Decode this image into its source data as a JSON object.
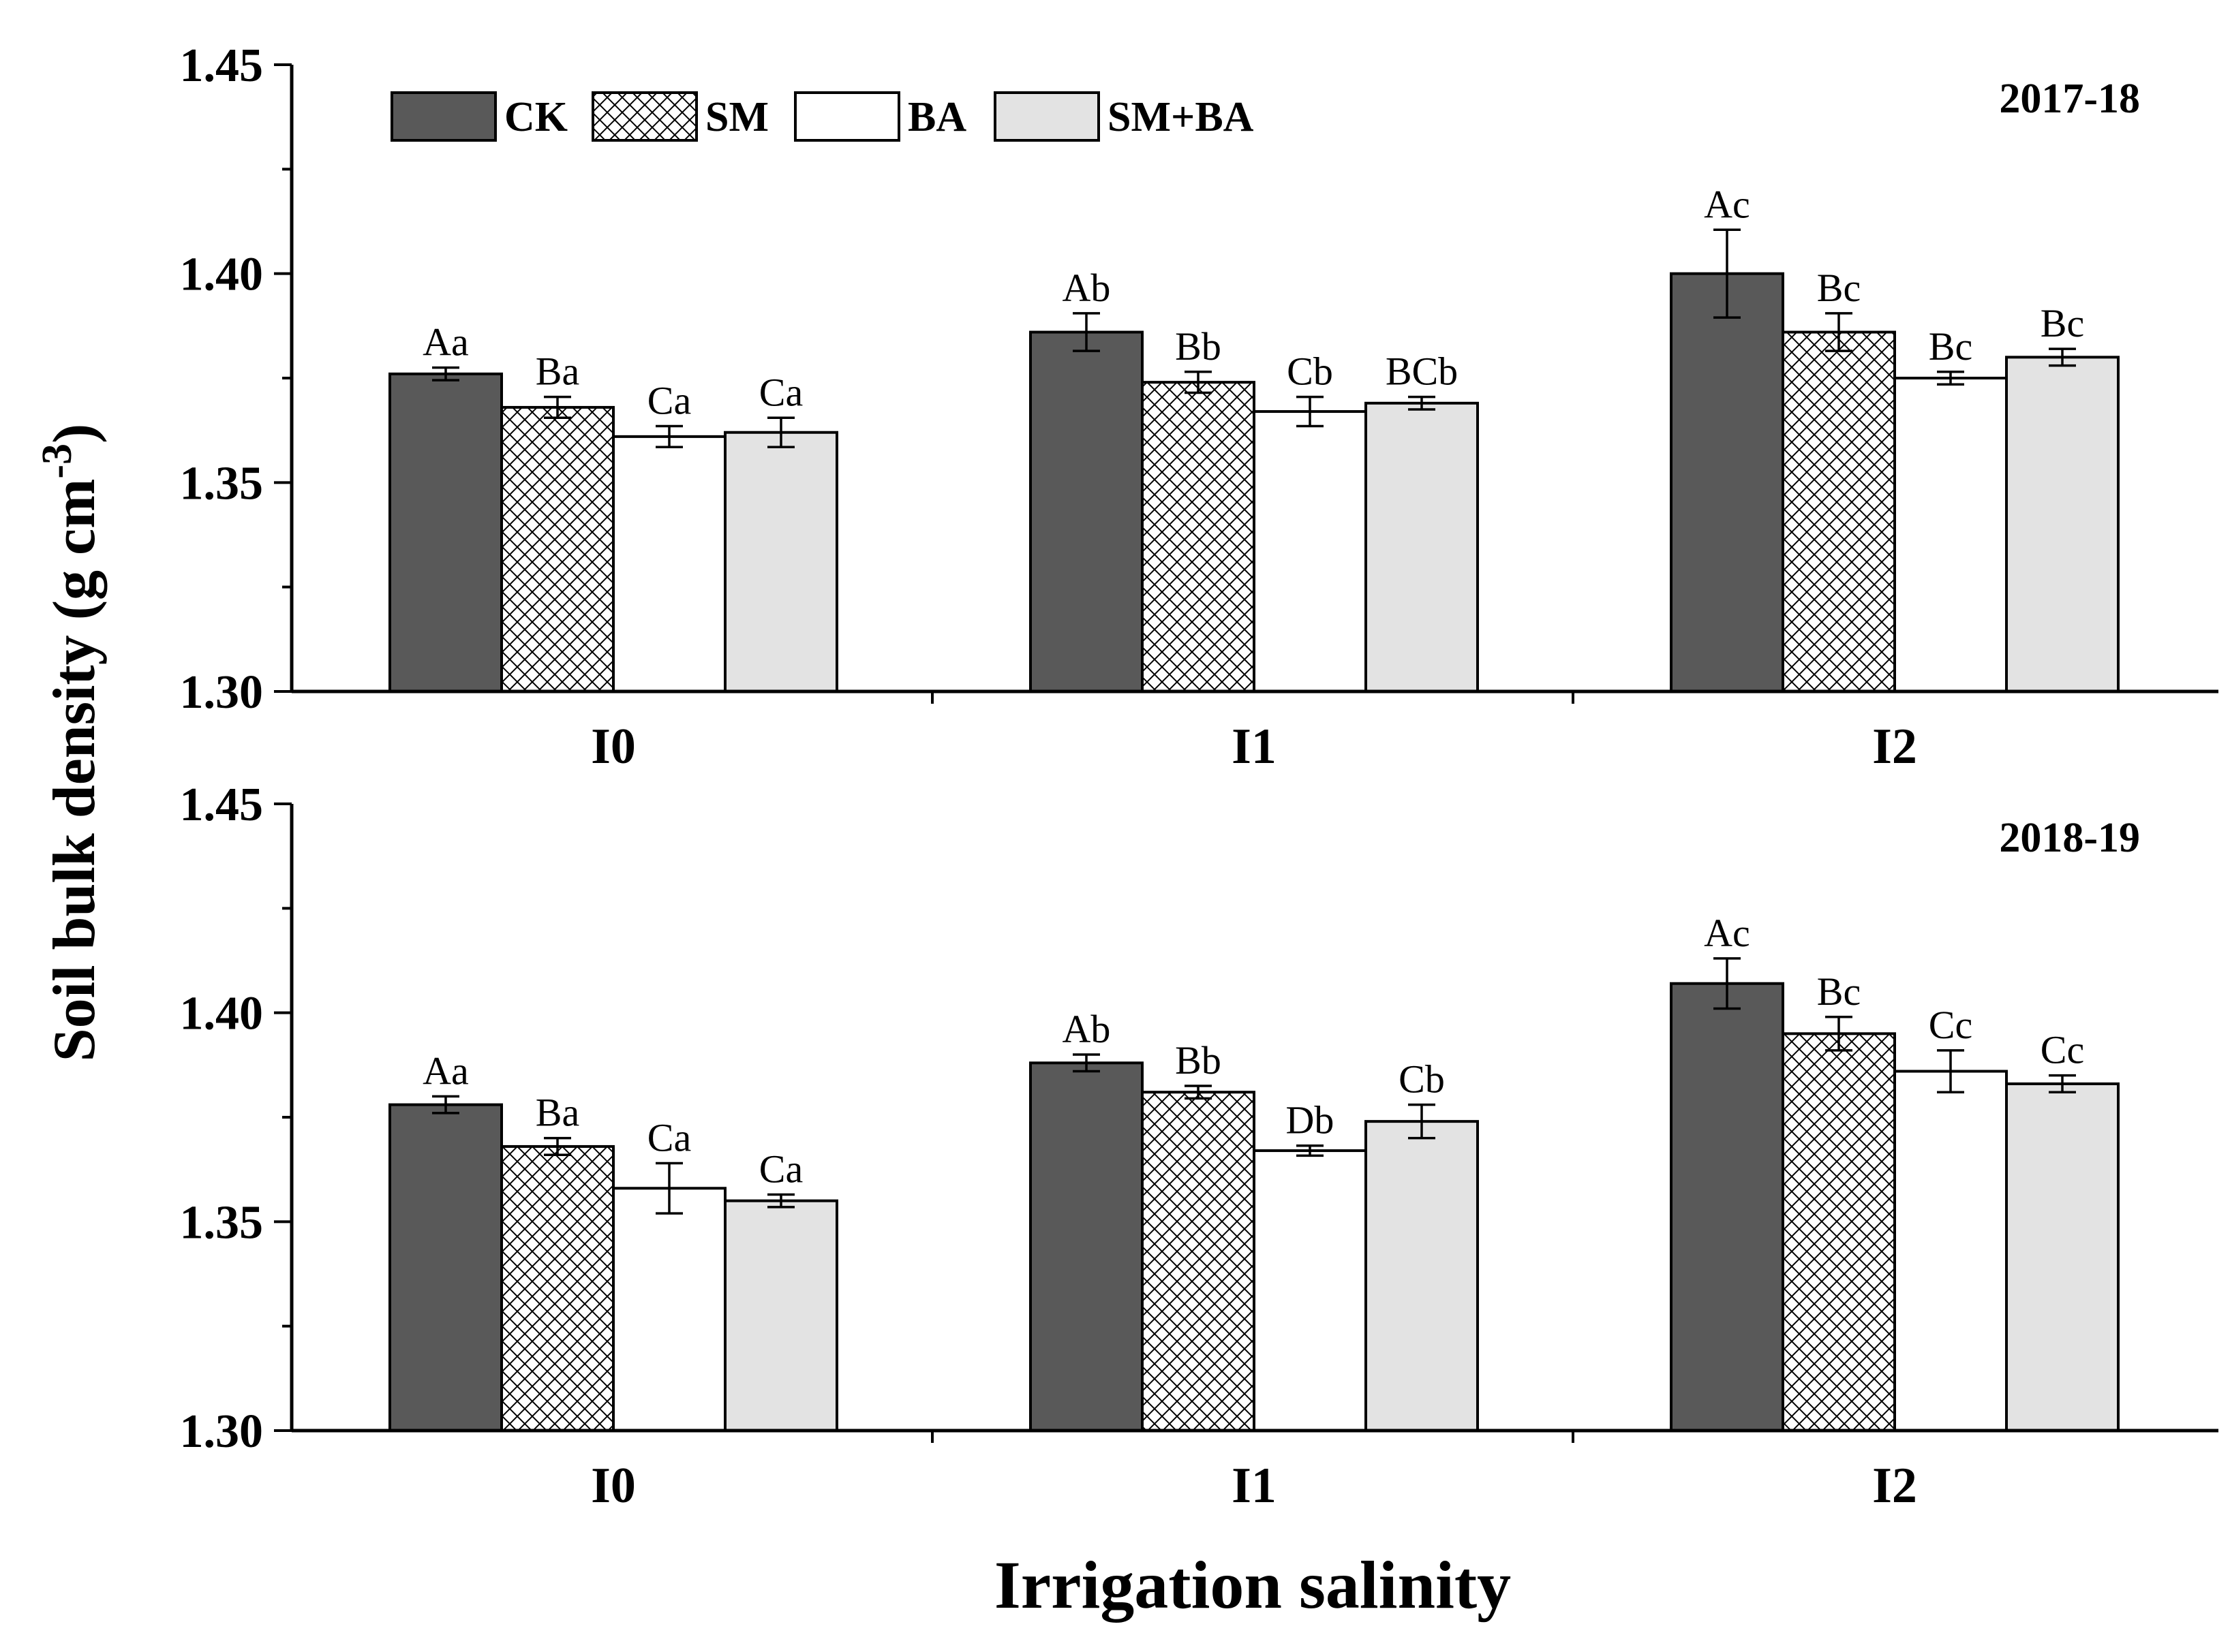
{
  "chart_data": {
    "type": "bar",
    "shared": {
      "ylabel": "Soil bulk density (g cm",
      "ylabel_sup": "-3",
      "ylabel_close": ")",
      "xlabel": "Irrigation salinity",
      "categories": [
        "I0",
        "I1",
        "I2"
      ],
      "series_names": [
        "CK",
        "SM",
        "BA",
        "SM+BA"
      ],
      "series_styles": [
        {
          "fill": "#595959",
          "pattern": "solid"
        },
        {
          "fill": "#ffffff",
          "pattern": "crosshatch"
        },
        {
          "fill": "#ffffff",
          "pattern": "none"
        },
        {
          "fill": "#e3e3e3",
          "pattern": "solid"
        }
      ],
      "ylim": [
        1.3,
        1.45
      ],
      "yticks": [
        "1.30",
        "1.35",
        "1.40",
        "1.45"
      ],
      "ytick_values": [
        1.3,
        1.35,
        1.4,
        1.45
      ],
      "legend_position": "top-left"
    },
    "panels": [
      {
        "title": "2017-18",
        "series": [
          {
            "name": "CK",
            "values": [
              1.376,
              1.386,
              1.4
            ],
            "errors": [
              0.0015,
              0.0045,
              0.0105
            ],
            "labels": [
              "Aa",
              "Ab",
              "Ac"
            ]
          },
          {
            "name": "SM",
            "values": [
              1.368,
              1.374,
              1.386
            ],
            "errors": [
              0.0025,
              0.0025,
              0.0045
            ],
            "labels": [
              "Ba",
              "Bb",
              "Bc"
            ]
          },
          {
            "name": "BA",
            "values": [
              1.361,
              1.367,
              1.375
            ],
            "errors": [
              0.0025,
              0.0035,
              0.0015
            ],
            "labels": [
              "Ca",
              "Cb",
              "Bc"
            ]
          },
          {
            "name": "SM+BA",
            "values": [
              1.362,
              1.369,
              1.38
            ],
            "errors": [
              0.0035,
              0.0015,
              0.002
            ],
            "labels": [
              "Ca",
              "BCb",
              "Bc"
            ]
          }
        ]
      },
      {
        "title": "2018-19",
        "series": [
          {
            "name": "CK",
            "values": [
              1.378,
              1.388,
              1.407
            ],
            "errors": [
              0.002,
              0.002,
              0.006
            ],
            "labels": [
              "Aa",
              "Ab",
              "Ac"
            ]
          },
          {
            "name": "SM",
            "values": [
              1.368,
              1.381,
              1.395
            ],
            "errors": [
              0.002,
              0.0015,
              0.004
            ],
            "labels": [
              "Ba",
              "Bb",
              "Bc"
            ]
          },
          {
            "name": "BA",
            "values": [
              1.358,
              1.367,
              1.386
            ],
            "errors": [
              0.006,
              0.0012,
              0.005
            ],
            "labels": [
              "Ca",
              "Db",
              "Cc"
            ]
          },
          {
            "name": "SM+BA",
            "values": [
              1.355,
              1.374,
              1.383
            ],
            "errors": [
              0.0015,
              0.004,
              0.002
            ],
            "labels": [
              "Ca",
              "Cb",
              "Cc"
            ]
          }
        ]
      }
    ]
  }
}
